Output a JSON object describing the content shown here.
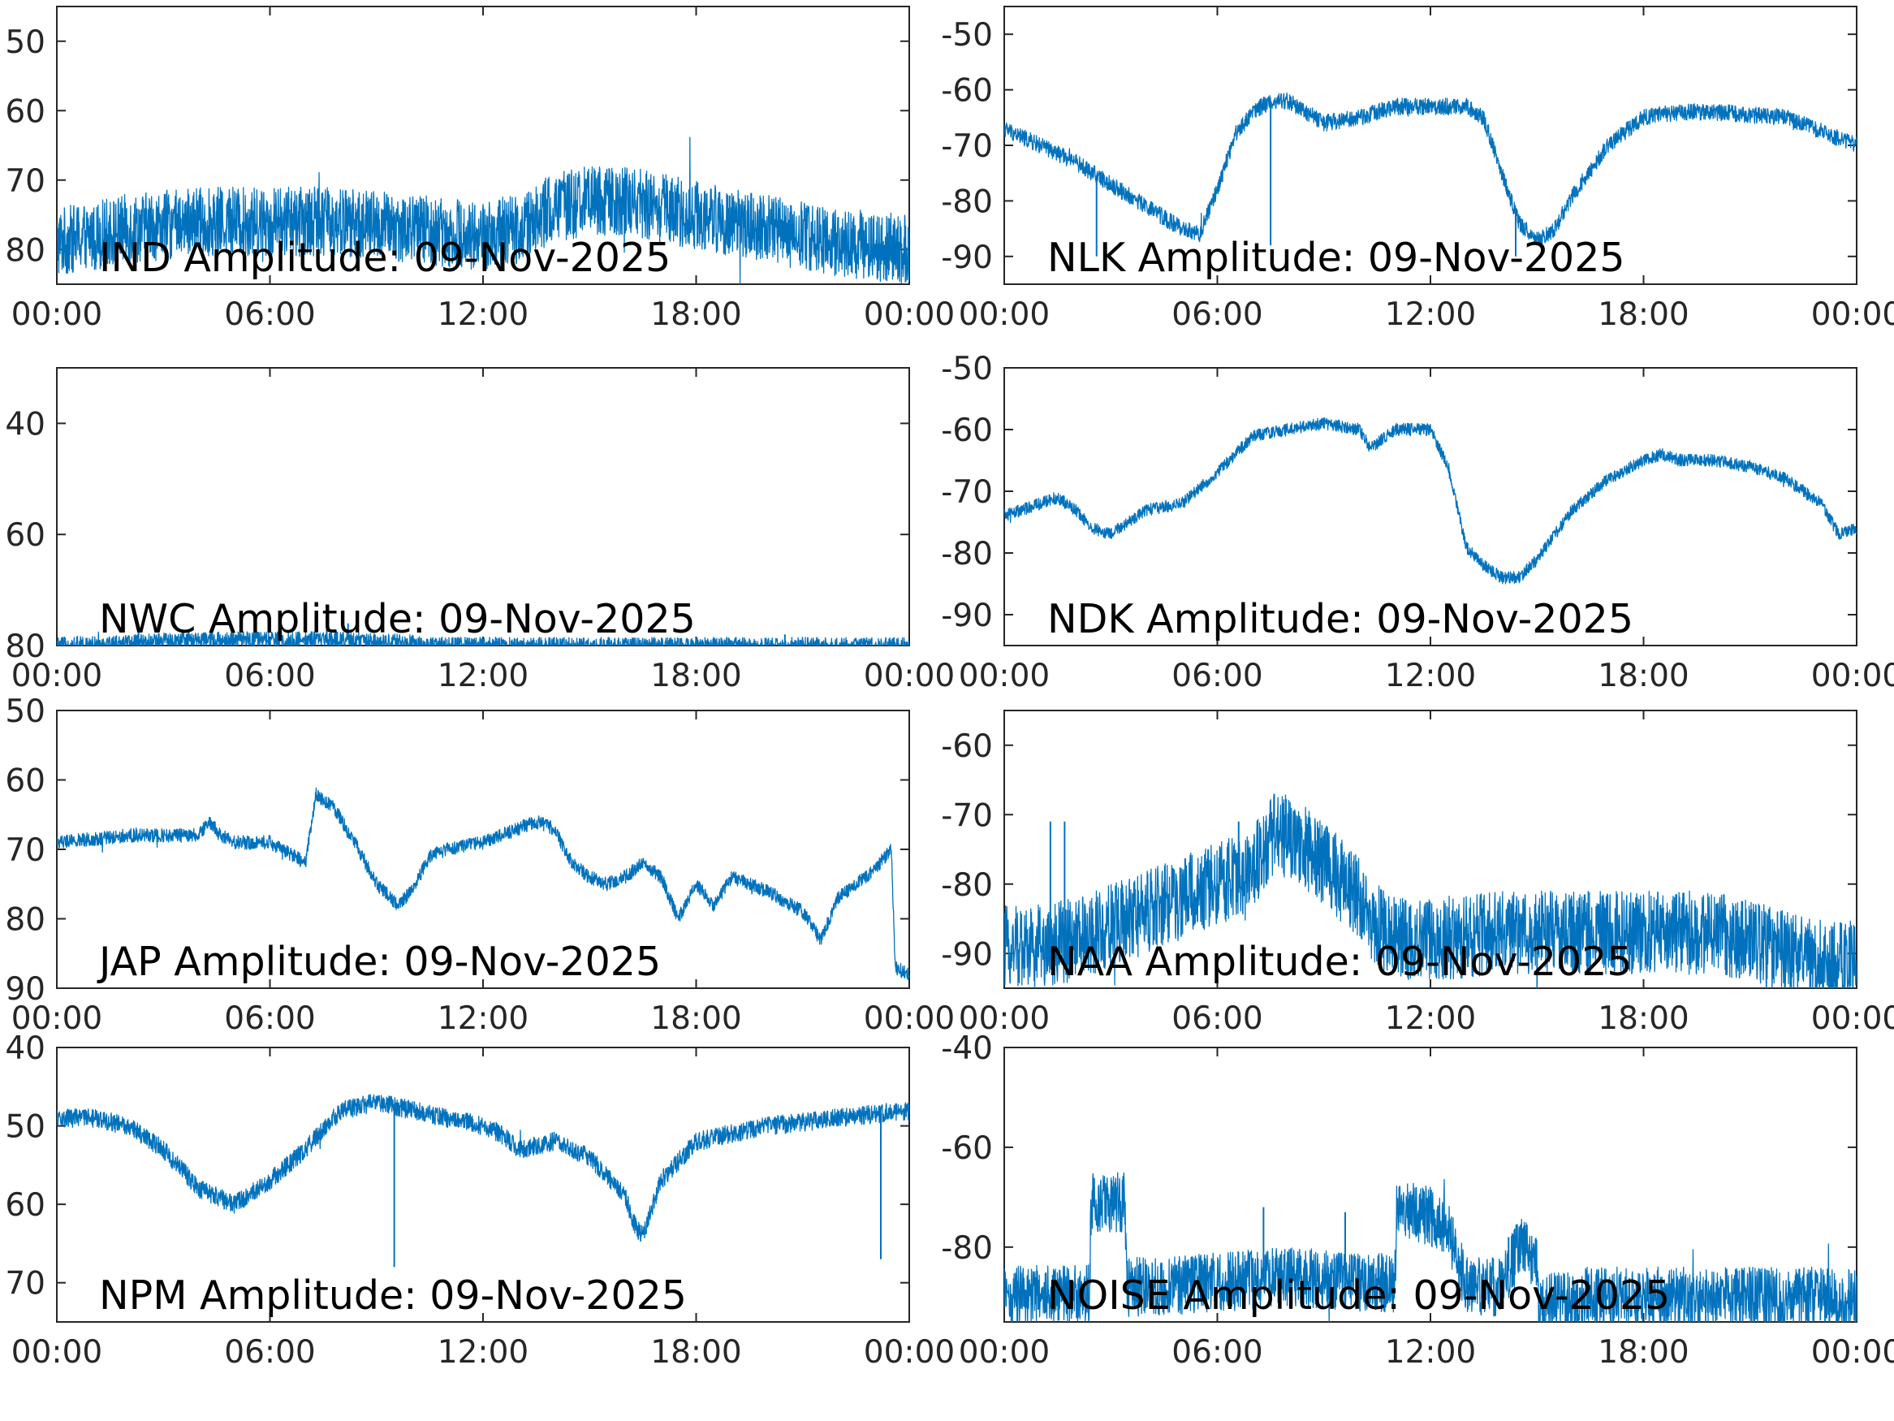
{
  "figure": {
    "line_color": "#0072BD",
    "axis_color": "#262626",
    "background": "#ffffff"
  },
  "chart_data": [
    {
      "id": "IND",
      "type": "line",
      "title": "IND Amplitude: 09-Nov-2025",
      "x_ticks": [
        "00:00",
        "06:00",
        "12:00",
        "18:00",
        "00:00"
      ],
      "ylim": [
        -85,
        -45
      ],
      "y_ticks": [
        -50,
        -60,
        -70,
        -80
      ],
      "y_tick_labels": [
        "50",
        "60",
        "70",
        "80"
      ],
      "series": [
        {
          "name": "IND",
          "noise": 5,
          "x": [
            0,
            2,
            4,
            6,
            8,
            10,
            12,
            13,
            14,
            15,
            16,
            18,
            20,
            22,
            24
          ],
          "y": [
            -79,
            -77,
            -76,
            -76,
            -76,
            -77,
            -78,
            -77,
            -74,
            -73,
            -73,
            -75,
            -77,
            -79,
            -80
          ],
          "spikes": []
        }
      ]
    },
    {
      "id": "NLK",
      "type": "line",
      "title": "NLK Amplitude: 09-Nov-2025",
      "x_ticks": [
        "00:00",
        "06:00",
        "12:00",
        "18:00",
        "00:00"
      ],
      "ylim": [
        -95,
        -45
      ],
      "y_ticks": [
        -50,
        -60,
        -70,
        -80,
        -90
      ],
      "y_tick_labels": [
        "-50",
        "-60",
        "-70",
        "-80",
        "-90"
      ],
      "series": [
        {
          "name": "NLK",
          "noise": 1.5,
          "x": [
            0,
            1,
            2,
            3,
            4,
            5,
            5.5,
            6,
            6.5,
            7,
            7.5,
            8,
            9,
            10,
            11,
            12,
            13,
            13.5,
            14,
            14.5,
            15,
            15.5,
            16,
            17,
            18,
            19,
            20,
            22,
            24
          ],
          "y": [
            -67,
            -70,
            -73,
            -77,
            -81,
            -85,
            -86,
            -78,
            -68,
            -64,
            -62,
            -62,
            -66,
            -65,
            -63,
            -63,
            -63,
            -65,
            -75,
            -84,
            -87,
            -85,
            -79,
            -70,
            -65,
            -64,
            -64,
            -65,
            -70
          ],
          "spikes": [
            {
              "x": 2.6,
              "y": -90
            },
            {
              "x": 7.5,
              "y": -88
            },
            {
              "x": 14.4,
              "y": -90
            }
          ]
        }
      ]
    },
    {
      "id": "NWC",
      "type": "line",
      "title": "NWC Amplitude: 09-Nov-2025",
      "x_ticks": [
        "00:00",
        "06:00",
        "12:00",
        "18:00",
        "00:00"
      ],
      "ylim": [
        -80,
        -30
      ],
      "y_ticks": [
        -40,
        -60,
        -80
      ],
      "y_tick_labels": [
        "40",
        "60",
        "80"
      ],
      "series": [
        {
          "name": "NWC",
          "noise": 1.5,
          "x": [
            0,
            2,
            4,
            6,
            8,
            10,
            10.5
          ],
          "y": [
            -80,
            -79.5,
            -79,
            -79,
            -79,
            -79.5,
            -80
          ],
          "spikes": [
            {
              "x": 2.3,
              "y": -77
            },
            {
              "x": 7.6,
              "y": -74
            },
            {
              "x": 8.2,
              "y": -76
            },
            {
              "x": 20.5,
              "y": -78
            },
            {
              "x": 21.4,
              "y": -78.5
            }
          ]
        }
      ]
    },
    {
      "id": "NDK",
      "type": "line",
      "title": "NDK Amplitude: 09-Nov-2025",
      "x_ticks": [
        "00:00",
        "06:00",
        "12:00",
        "18:00",
        "00:00"
      ],
      "ylim": [
        -95,
        -50
      ],
      "y_ticks": [
        -50,
        -60,
        -70,
        -80,
        -90
      ],
      "y_tick_labels": [
        "-50",
        "-60",
        "-70",
        "-80",
        "-90"
      ],
      "series": [
        {
          "name": "NDK",
          "noise": 1,
          "x": [
            0,
            1,
            1.5,
            2,
            2.5,
            3,
            4,
            5,
            6,
            7,
            8,
            9,
            10,
            10.3,
            11,
            12,
            12.5,
            13,
            13.5,
            14,
            14.5,
            15,
            16,
            17,
            18,
            18.5,
            19,
            20,
            21,
            22,
            23,
            23.5,
            24
          ],
          "y": [
            -74,
            -72,
            -71,
            -73,
            -76,
            -77,
            -73,
            -72,
            -67,
            -61,
            -60,
            -59,
            -60,
            -63,
            -60,
            -60,
            -66,
            -79,
            -82,
            -84,
            -84,
            -81,
            -73,
            -68,
            -65,
            -64,
            -65,
            -65,
            -66,
            -68,
            -72,
            -77,
            -76
          ],
          "spikes": []
        }
      ]
    },
    {
      "id": "JAP",
      "type": "line",
      "title": "JAP Amplitude: 09-Nov-2025",
      "x_ticks": [
        "00:00",
        "06:00",
        "12:00",
        "18:00",
        "00:00"
      ],
      "ylim": [
        -90,
        -50
      ],
      "y_ticks": [
        -50,
        -60,
        -70,
        -80,
        -90
      ],
      "y_tick_labels": [
        "50",
        "60",
        "70",
        "80",
        "90"
      ],
      "series": [
        {
          "name": "JAP",
          "noise": 1,
          "x": [
            0,
            2,
            4,
            4.3,
            4.6,
            5,
            6,
            7,
            7.3,
            7.8,
            8.5,
            9,
            9.6,
            10,
            10.5,
            11,
            12,
            13,
            13.5,
            14,
            14.5,
            15,
            15.5,
            16,
            16.5,
            17,
            17.5,
            18,
            18.5,
            19,
            20,
            21,
            21.5,
            22,
            23,
            23.5,
            23.6,
            24
          ],
          "y": [
            -69,
            -68,
            -68,
            -66,
            -68,
            -69,
            -69,
            -72,
            -62,
            -64,
            -70,
            -75,
            -78,
            -76,
            -71,
            -70,
            -69,
            -67,
            -66,
            -67,
            -72,
            -74,
            -75,
            -74,
            -72,
            -74,
            -80,
            -75,
            -78,
            -74,
            -76,
            -79,
            -83,
            -77,
            -73,
            -70,
            -87,
            -88
          ],
          "spikes": []
        }
      ]
    },
    {
      "id": "NAA",
      "type": "line",
      "title": "NAA Amplitude: 09-Nov-2025",
      "x_ticks": [
        "00:00",
        "06:00",
        "12:00",
        "18:00",
        "00:00"
      ],
      "ylim": [
        -95,
        -55
      ],
      "y_ticks": [
        -60,
        -70,
        -80,
        -90
      ],
      "y_tick_labels": [
        "-60",
        "-70",
        "-80",
        "-90"
      ],
      "series": [
        {
          "name": "NAA",
          "noise": 6,
          "x": [
            0,
            1,
            2,
            3,
            4,
            5,
            6,
            6.5,
            7,
            7.5,
            8,
            9,
            10,
            10.5,
            11,
            12,
            14,
            16,
            18,
            20,
            21,
            22,
            23,
            24
          ],
          "y": [
            -89,
            -89,
            -88,
            -86,
            -84,
            -82,
            -80,
            -79,
            -78,
            -73,
            -73,
            -77,
            -82,
            -86,
            -88,
            -88,
            -87,
            -87,
            -87,
            -87,
            -88,
            -90,
            -91,
            -91
          ],
          "spikes": [
            {
              "x": 1.3,
              "y": -71
            },
            {
              "x": 1.7,
              "y": -71
            },
            {
              "x": 6.6,
              "y": -71
            },
            {
              "x": 7.6,
              "y": -67
            }
          ]
        }
      ]
    },
    {
      "id": "NPM",
      "type": "line",
      "title": "NPM Amplitude: 09-Nov-2025",
      "x_ticks": [
        "00:00",
        "06:00",
        "12:00",
        "18:00",
        "00:00"
      ],
      "ylim": [
        -75,
        -40
      ],
      "y_ticks": [
        -40,
        -50,
        -60,
        -70
      ],
      "y_tick_labels": [
        "40",
        "50",
        "60",
        "70"
      ],
      "series": [
        {
          "name": "NPM",
          "noise": 1.2,
          "x": [
            0,
            1,
            2,
            3,
            4,
            5,
            6,
            7,
            8,
            9,
            10,
            11,
            12,
            12.5,
            13,
            14,
            15,
            16,
            16.3,
            16.5,
            17,
            18,
            19,
            20,
            22,
            24
          ],
          "y": [
            -49,
            -49,
            -50,
            -53,
            -58,
            -60,
            -57,
            -53,
            -48,
            -47,
            -48,
            -49,
            -50,
            -51,
            -53,
            -52,
            -54,
            -59,
            -63,
            -64,
            -57,
            -52,
            -51,
            -50,
            -49,
            -48
          ],
          "spikes": [
            {
              "x": 9.5,
              "y": -68
            },
            {
              "x": 23.2,
              "y": -67
            }
          ]
        }
      ]
    },
    {
      "id": "NOISE",
      "type": "line",
      "title": "NOISE Amplitude: 09-Nov-2025",
      "x_ticks": [
        "00:00",
        "06:00",
        "12:00",
        "18:00",
        "00:00"
      ],
      "ylim": [
        -95,
        -40
      ],
      "y_ticks": [
        -40,
        -60,
        -80
      ],
      "y_tick_labels": [
        "-40",
        "-60",
        "-80"
      ],
      "series": [
        {
          "name": "NOISE",
          "noise": 6,
          "x": [
            0,
            2,
            2.4,
            2.45,
            3.4,
            3.45,
            4,
            6,
            8,
            10,
            11,
            11.05,
            11.5,
            12,
            12.5,
            13,
            14,
            14.5,
            15,
            15.05,
            16,
            18,
            20,
            22,
            24
          ],
          "y": [
            -90,
            -89,
            -89,
            -71,
            -71,
            -88,
            -88,
            -87,
            -86,
            -87,
            -87,
            -73,
            -73,
            -74,
            -76,
            -88,
            -88,
            -80,
            -82,
            -92,
            -90,
            -90,
            -90,
            -90,
            -90
          ],
          "spikes": [
            {
              "x": 2.5,
              "y": -68
            },
            {
              "x": 7.3,
              "y": -72
            },
            {
              "x": 9.6,
              "y": -73
            },
            {
              "x": 11.2,
              "y": -71
            },
            {
              "x": 14.2,
              "y": -78
            }
          ]
        }
      ]
    }
  ]
}
